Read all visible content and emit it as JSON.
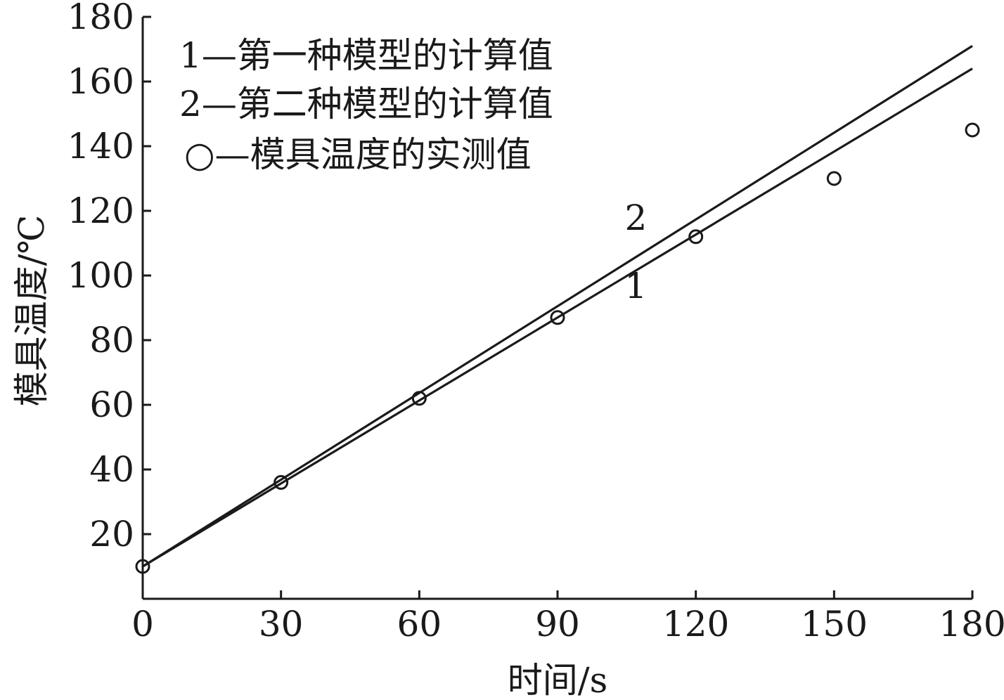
{
  "chart_data": {
    "type": "line",
    "xlabel": "时间/s",
    "ylabel": "模具温度/℃",
    "xlim": [
      0,
      180
    ],
    "ylim": [
      0,
      180
    ],
    "x_ticks": [
      "0",
      "30",
      "60",
      "90",
      "120",
      "150",
      "180"
    ],
    "y_ticks": [
      "20",
      "40",
      "60",
      "80",
      "100",
      "120",
      "140",
      "160",
      "180"
    ],
    "grid": false,
    "legend_position": "top-left",
    "legend": [
      {
        "marker": "1",
        "dash": "—",
        "label": "第一种模型的计算值"
      },
      {
        "marker": "2",
        "dash": "—",
        "label": "第二种模型的计算值"
      },
      {
        "marker": "○",
        "dash": "—",
        "label": "模具温度的实测值"
      }
    ],
    "series": [
      {
        "name": "1",
        "kind": "line",
        "x": [
          0,
          180
        ],
        "y": [
          10,
          164
        ]
      },
      {
        "name": "2",
        "kind": "line",
        "x": [
          0,
          180
        ],
        "y": [
          10,
          171
        ]
      },
      {
        "name": "○",
        "kind": "scatter",
        "x": [
          0,
          30,
          60,
          90,
          120,
          150,
          180
        ],
        "y": [
          10,
          36,
          62,
          87,
          112,
          130,
          145
        ]
      }
    ],
    "line_labels": [
      {
        "text": "2",
        "x": 107,
        "y": 118
      },
      {
        "text": "1",
        "x": 107,
        "y": 97
      }
    ]
  }
}
